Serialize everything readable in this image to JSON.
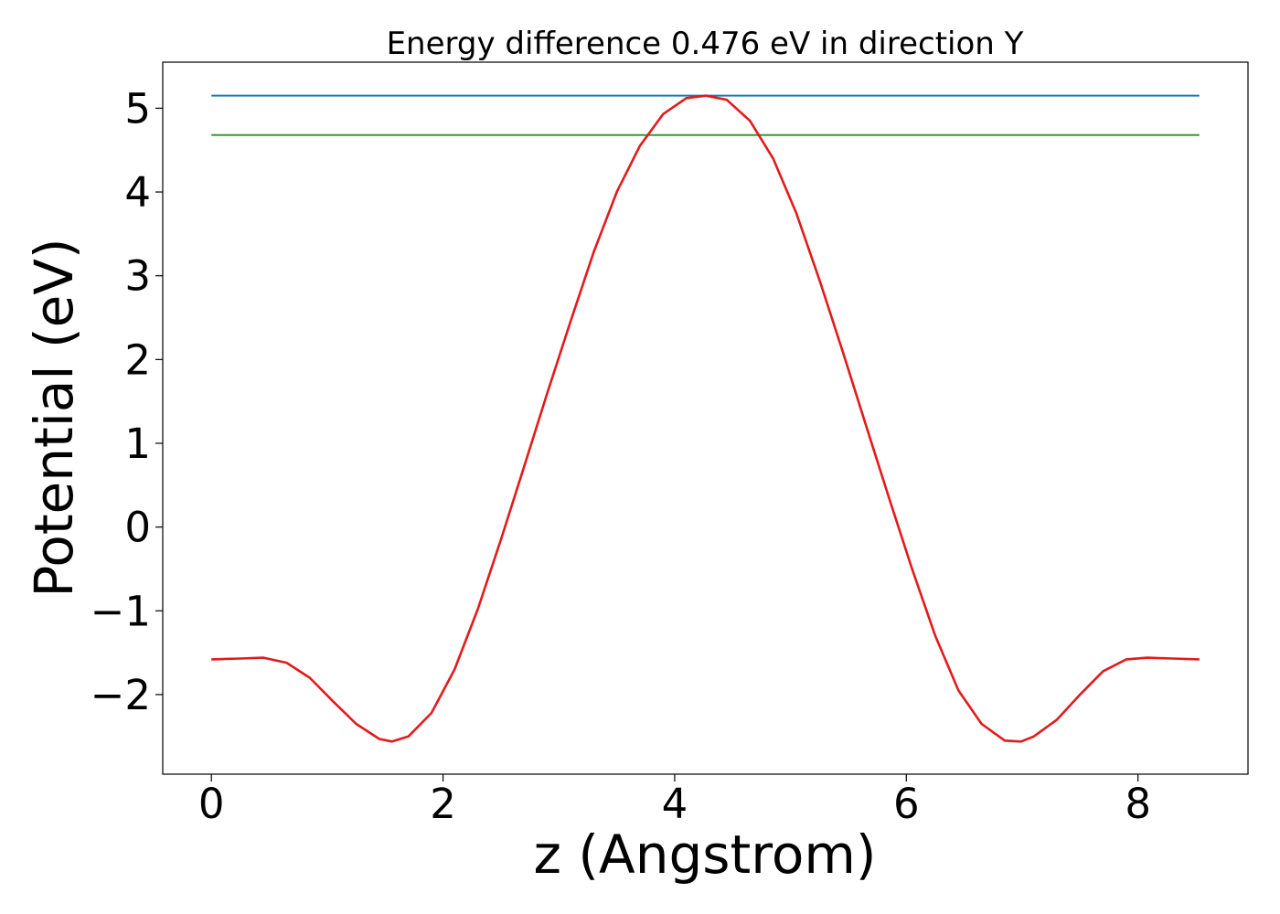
{
  "chart_data": {
    "type": "line",
    "title": "Energy difference 0.476 eV in direction Y",
    "xlabel": "z (Angstrom)",
    "ylabel": "Potential (eV)",
    "xlim": [
      -0.42,
      8.95
    ],
    "ylim": [
      -2.95,
      5.55
    ],
    "xticks": [
      {
        "value": 0,
        "label": "0"
      },
      {
        "value": 2,
        "label": "2"
      },
      {
        "value": 4,
        "label": "4"
      },
      {
        "value": 6,
        "label": "6"
      },
      {
        "value": 8,
        "label": "8"
      }
    ],
    "yticks": [
      {
        "value": -2,
        "label": "−2"
      },
      {
        "value": -1,
        "label": "−1"
      },
      {
        "value": 0,
        "label": "0"
      },
      {
        "value": 1,
        "label": "1"
      },
      {
        "value": 2,
        "label": "2"
      },
      {
        "value": 3,
        "label": "3"
      },
      {
        "value": 4,
        "label": "4"
      },
      {
        "value": 5,
        "label": "5"
      }
    ],
    "grid": false,
    "legend": "none",
    "series": [
      {
        "color": "#1f77b4",
        "x": [
          0,
          8.53
        ],
        "y": [
          5.15,
          5.15
        ]
      },
      {
        "color": "#2ca02c",
        "x": [
          0,
          8.53
        ],
        "y": [
          4.68,
          4.68
        ]
      },
      {
        "color": "#e31a1c",
        "x": [
          0.0,
          0.25,
          0.45,
          0.65,
          0.85,
          1.05,
          1.25,
          1.45,
          1.56,
          1.7,
          1.9,
          2.1,
          2.3,
          2.5,
          2.7,
          2.9,
          3.1,
          3.3,
          3.5,
          3.7,
          3.9,
          4.1,
          4.27,
          4.45,
          4.65,
          4.85,
          5.05,
          5.25,
          5.45,
          5.65,
          5.85,
          6.05,
          6.25,
          6.45,
          6.65,
          6.85,
          6.99,
          7.1,
          7.3,
          7.5,
          7.7,
          7.9,
          8.08,
          8.3,
          8.53
        ],
        "y": [
          -1.58,
          -1.57,
          -1.56,
          -1.62,
          -1.8,
          -2.08,
          -2.35,
          -2.53,
          -2.56,
          -2.5,
          -2.22,
          -1.7,
          -0.98,
          -0.15,
          0.72,
          1.6,
          2.45,
          3.28,
          4.0,
          4.55,
          4.93,
          5.12,
          5.15,
          5.1,
          4.85,
          4.4,
          3.75,
          2.95,
          2.1,
          1.22,
          0.35,
          -0.5,
          -1.3,
          -1.95,
          -2.35,
          -2.55,
          -2.56,
          -2.5,
          -2.3,
          -2.0,
          -1.72,
          -1.58,
          -1.56,
          -1.57,
          -1.58
        ]
      }
    ]
  }
}
